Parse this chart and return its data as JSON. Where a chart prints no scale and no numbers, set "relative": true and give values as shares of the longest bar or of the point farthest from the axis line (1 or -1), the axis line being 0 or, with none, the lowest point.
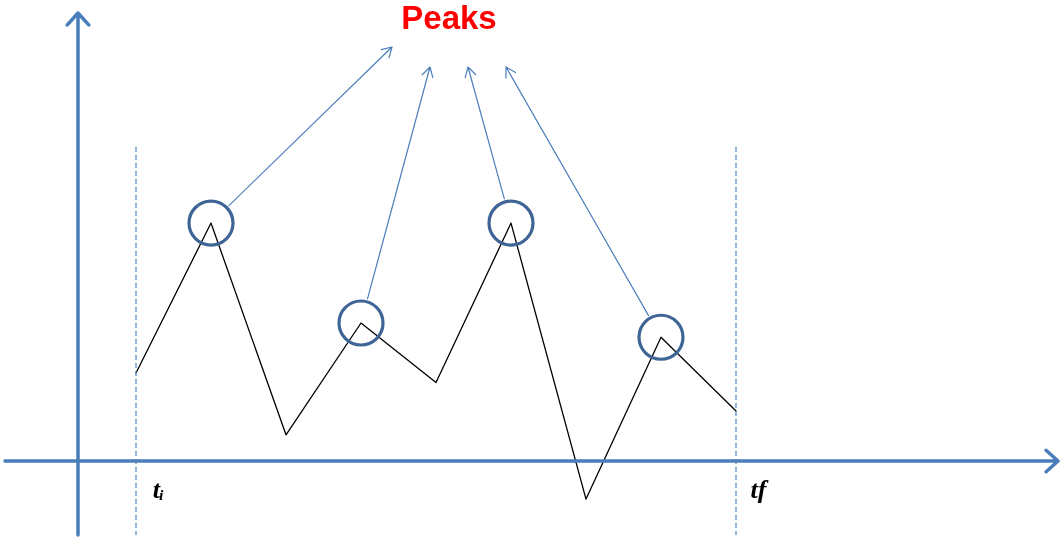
{
  "chart_data": {
    "type": "line",
    "relative": true,
    "tick_labels": "x",
    "categories": [
      "tᵢ",
      null,
      null,
      null,
      null,
      null,
      null,
      null,
      "tf"
    ],
    "series": [
      {
        "color": "#000000",
        "values": [
          0.37,
          1,
          0.11,
          0.58,
          0.33,
          1,
          -0.16,
          0.52,
          0.21
        ]
      },
      {
        "type": "scatter",
        "color": "#3f6496",
        "marker": "circle",
        "values": [
          null,
          1,
          null,
          0.58,
          null,
          1,
          null,
          0.52,
          null
        ]
      }
    ],
    "ref_lines": [
      {
        "axis": "x",
        "value": "tᵢ",
        "color": "#4f81bd",
        "line_style": "dashed"
      },
      {
        "axis": "x",
        "value": "tf",
        "color": "#4f81bd",
        "line_style": "dashed"
      }
    ],
    "annotations": [
      "Peaks"
    ]
  }
}
